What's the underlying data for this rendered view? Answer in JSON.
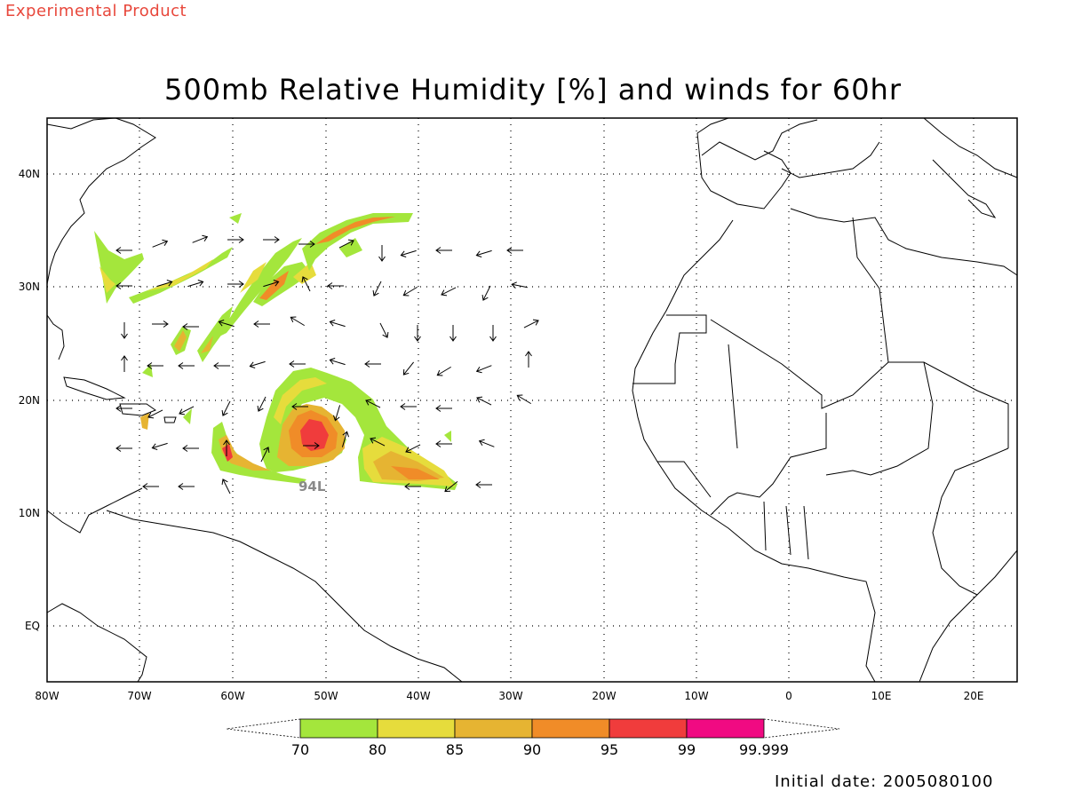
{
  "header": {
    "experimental": "Experimental Product",
    "title": "500mb Relative Humidity [%] and winds for 60hr"
  },
  "footer": {
    "initial_date": "Initial date: 2005080100"
  },
  "map": {
    "lon_labels": [
      "80W",
      "70W",
      "60W",
      "50W",
      "40W",
      "30W",
      "20W",
      "10W",
      "0",
      "10E",
      "20E"
    ],
    "lat_labels": [
      "40N",
      "30N",
      "20N",
      "10N",
      "EQ"
    ],
    "storm_label": "94L",
    "border_color": "#000000",
    "grid_style": "dotted"
  },
  "colorbar": {
    "bins": [
      {
        "color": "#a4e63c"
      },
      {
        "color": "#e6dc3c"
      },
      {
        "color": "#e6b432"
      },
      {
        "color": "#f08c28"
      },
      {
        "color": "#f03c3c"
      },
      {
        "color": "#f00a82"
      }
    ],
    "labels": [
      "70",
      "80",
      "85",
      "90",
      "95",
      "99",
      "99.999"
    ]
  }
}
